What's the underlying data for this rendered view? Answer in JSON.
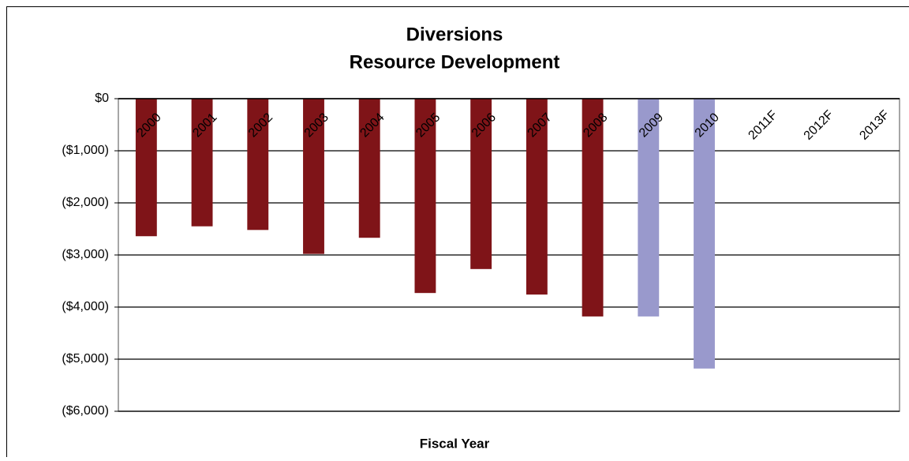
{
  "chart_data": {
    "type": "bar",
    "title": "Diversions",
    "subtitle": "Resource Development",
    "x_label": "Fiscal Year",
    "categories": [
      "2000",
      "2001",
      "2002",
      "2003",
      "2004",
      "2005",
      "2006",
      "2007",
      "2008",
      "2009",
      "2010",
      "2011F",
      "2012F",
      "2013F"
    ],
    "values": [
      -2640,
      -2450,
      -2520,
      -2980,
      -2670,
      -3730,
      -3270,
      -3760,
      -4180,
      -4180,
      -5180,
      null,
      null,
      null
    ],
    "colors": [
      "#7f1418",
      "#7f1418",
      "#7f1418",
      "#7f1418",
      "#7f1418",
      "#7f1418",
      "#7f1418",
      "#7f1418",
      "#7f1418",
      "#9999cc",
      "#9999cc",
      "#9999cc",
      "#9999cc",
      "#9999cc"
    ],
    "ylim": [
      -6000,
      0
    ],
    "yticks": [
      {
        "value": 0,
        "label": "$0"
      },
      {
        "value": -1000,
        "label": "($1,000)"
      },
      {
        "value": -2000,
        "label": "($2,000)"
      },
      {
        "value": -3000,
        "label": "($3,000)"
      },
      {
        "value": -4000,
        "label": "($4,000)"
      },
      {
        "value": -5000,
        "label": "($5,000)"
      },
      {
        "value": -6000,
        "label": "($6,000)"
      }
    ],
    "grid": true
  }
}
